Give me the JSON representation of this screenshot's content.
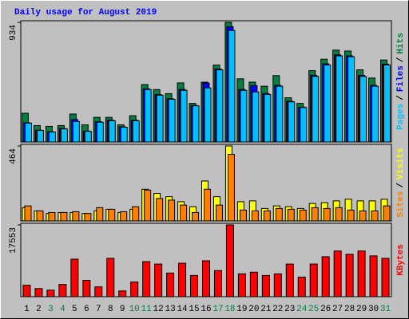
{
  "chart_data": [
    {
      "type": "bar",
      "title": "Daily usage for August 2019",
      "series": [
        {
          "name": "Hits",
          "color": "#008040",
          "values": [
            224,
            128,
            122,
            128,
            218,
            134,
            192,
            192,
            134,
            205,
            448,
            409,
            377,
            461,
            301,
            467,
            601,
            934,
            493,
            467,
            435,
            518,
            345,
            301,
            557,
            646,
            717,
            710,
            563,
            499,
            640
          ]
        },
        {
          "name": "Files",
          "color": "#0000FF",
          "values": [
            150,
            92,
            80,
            105,
            175,
            85,
            158,
            170,
            118,
            170,
            415,
            370,
            338,
            410,
            285,
            460,
            570,
            900,
            410,
            440,
            378,
            442,
            318,
            272,
            520,
            610,
            680,
            672,
            520,
            442,
            608
          ]
        },
        {
          "name": "Pages",
          "color": "#00C0FF",
          "values": [
            147,
            90,
            77,
            102,
            160,
            83,
            154,
            166,
            115,
            166,
            409,
            365,
            333,
            403,
            282,
            422,
            563,
            870,
            403,
            390,
            371,
            435,
            313,
            269,
            512,
            601,
            672,
            665,
            512,
            435,
            601
          ]
        }
      ],
      "ylim": [
        0,
        934
      ],
      "yticks": [
        934
      ]
    },
    {
      "type": "bar",
      "series": [
        {
          "name": "Visits",
          "color": "#FFFF00",
          "values": [
            82,
            62,
            46,
            52,
            52,
            46,
            62,
            72,
            52,
            72,
            196,
            170,
            150,
            119,
            88,
            247,
            150,
            464,
            119,
            124,
            77,
            93,
            88,
            77,
            108,
            113,
            124,
            134,
            124,
            124,
            134
          ]
        },
        {
          "name": "Sites",
          "color": "#FF8000",
          "values": [
            93,
            62,
            52,
            52,
            57,
            46,
            82,
            72,
            57,
            88,
            191,
            139,
            129,
            98,
            52,
            196,
            98,
            412,
            67,
            62,
            62,
            77,
            72,
            67,
            82,
            77,
            82,
            67,
            62,
            62,
            93
          ]
        }
      ],
      "ylim": [
        0,
        464
      ],
      "yticks": [
        464
      ]
    },
    {
      "type": "bar",
      "categories": [
        "1",
        "2",
        "3",
        "4",
        "5",
        "6",
        "7",
        "8",
        "9",
        "10",
        "11",
        "12",
        "13",
        "14",
        "15",
        "16",
        "17",
        "18",
        "19",
        "20",
        "21",
        "22",
        "23",
        "24",
        "25",
        "26",
        "27",
        "28",
        "29",
        "30",
        "31"
      ],
      "category_colors": [
        "#000000",
        "#000000",
        "#008040",
        "#008040",
        "#000000",
        "#000000",
        "#000000",
        "#000000",
        "#000000",
        "#008040",
        "#008040",
        "#000000",
        "#000000",
        "#000000",
        "#000000",
        "#000000",
        "#008040",
        "#008040",
        "#000000",
        "#000000",
        "#000000",
        "#000000",
        "#000000",
        "#008040",
        "#008040",
        "#000000",
        "#000000",
        "#000000",
        "#000000",
        "#000000",
        "#008040"
      ],
      "series": [
        {
          "name": "KBytes",
          "color": "#FF0000",
          "values": [
            2793,
            1995,
            1596,
            2992,
            9176,
            3989,
            2394,
            9375,
            1396,
            3590,
            8577,
            7979,
            5785,
            8178,
            5186,
            8777,
            6383,
            17553,
            5585,
            5984,
            5186,
            5585,
            7979,
            4787,
            7979,
            9774,
            11170,
            10372,
            11170,
            9974,
            9375
          ]
        }
      ],
      "ylim": [
        0,
        17553
      ],
      "yticks": [
        17553
      ]
    }
  ],
  "legend_separator": "/"
}
